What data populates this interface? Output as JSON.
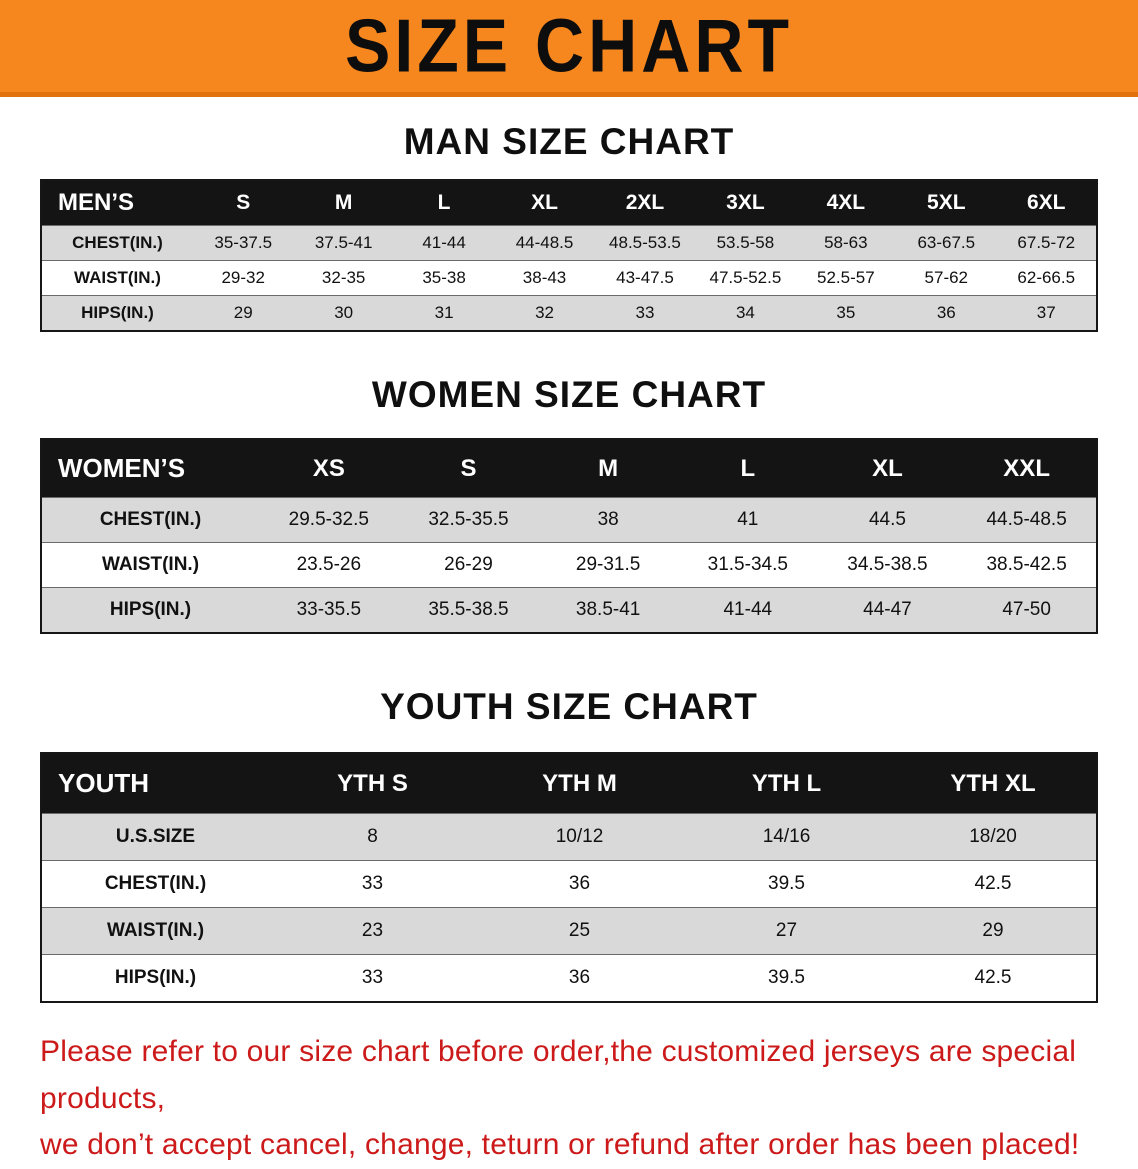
{
  "banner": {
    "title": "SIZE CHART",
    "bg_color": "#f6871f"
  },
  "sections": [
    {
      "id": "men",
      "heading": "MAN SIZE CHART",
      "table": {
        "header": [
          "MEN’S",
          "S",
          "M",
          "L",
          "XL",
          "2XL",
          "3XL",
          "4XL",
          "5XL",
          "6XL"
        ],
        "rows": [
          [
            "CHEST(IN.)",
            "35-37.5",
            "37.5-41",
            "41-44",
            "44-48.5",
            "48.5-53.5",
            "53.5-58",
            "58-63",
            "63-67.5",
            "67.5-72"
          ],
          [
            "WAIST(IN.)",
            "29-32",
            "32-35",
            "35-38",
            "38-43",
            "43-47.5",
            "47.5-52.5",
            "52.5-57",
            "57-62",
            "62-66.5"
          ],
          [
            "HIPS(IN.)",
            "29",
            "30",
            "31",
            "32",
            "33",
            "34",
            "35",
            "36",
            "37"
          ]
        ]
      }
    },
    {
      "id": "women",
      "heading": "WOMEN SIZE CHART",
      "table": {
        "header": [
          "WOMEN’S",
          "XS",
          "S",
          "M",
          "L",
          "XL",
          "XXL"
        ],
        "rows": [
          [
            "CHEST(IN.)",
            "29.5-32.5",
            "32.5-35.5",
            "38",
            "41",
            "44.5",
            "44.5-48.5"
          ],
          [
            "WAIST(IN.)",
            "23.5-26",
            "26-29",
            "29-31.5",
            "31.5-34.5",
            "34.5-38.5",
            "38.5-42.5"
          ],
          [
            "HIPS(IN.)",
            "33-35.5",
            "35.5-38.5",
            "38.5-41",
            "41-44",
            "44-47",
            "47-50"
          ]
        ]
      }
    },
    {
      "id": "youth",
      "heading": "YOUTH SIZE CHART",
      "table": {
        "header": [
          "YOUTH",
          "YTH S",
          "YTH M",
          "YTH L",
          "YTH XL"
        ],
        "rows": [
          [
            "U.S.SIZE",
            "8",
            "10/12",
            "14/16",
            "18/20"
          ],
          [
            "CHEST(IN.)",
            "33",
            "36",
            "39.5",
            "42.5"
          ],
          [
            "WAIST(IN.)",
            "23",
            "25",
            "27",
            "29"
          ],
          [
            "HIPS(IN.)",
            "33",
            "36",
            "39.5",
            "42.5"
          ]
        ]
      }
    }
  ],
  "disclaimer": {
    "line1": "Please refer to our size chart before order,the customized jerseys are special products,",
    "line2": "we don’t accept cancel, change, teturn or refund after order has been placed!",
    "color": "#cc1a1a"
  }
}
